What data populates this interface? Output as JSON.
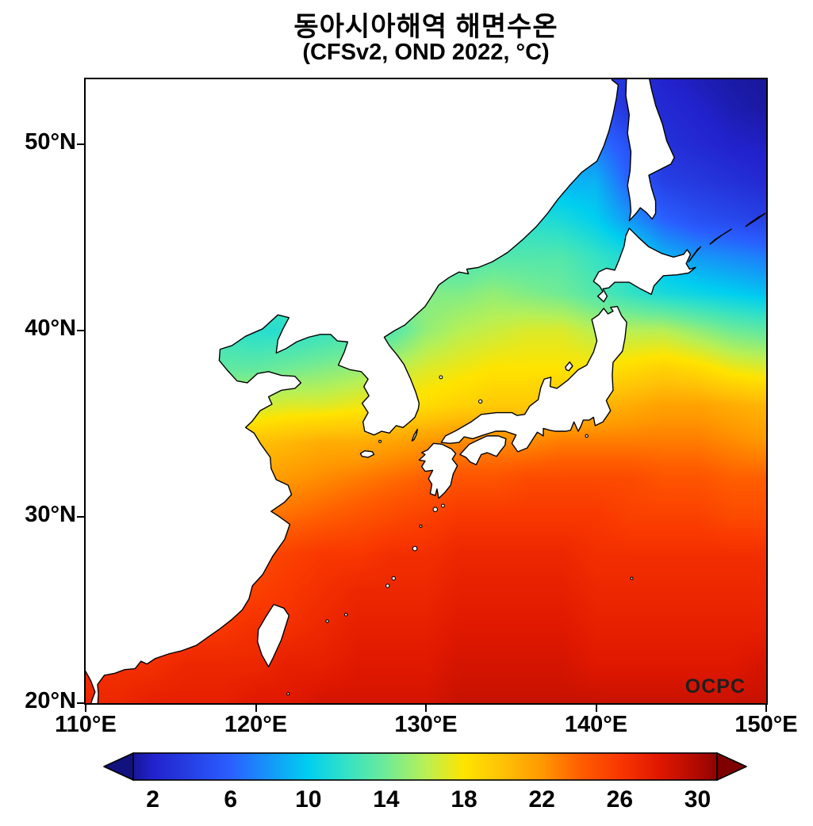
{
  "title": {
    "line1": "동아시아해역 해면수온",
    "line2": "(CFSv2, OND 2022, °C)"
  },
  "watermark": "OCPC",
  "axes": {
    "x_ticks": [
      {
        "v": 110,
        "label": "110°E"
      },
      {
        "v": 120,
        "label": "120°E"
      },
      {
        "v": 130,
        "label": "130°E"
      },
      {
        "v": 140,
        "label": "140°E"
      },
      {
        "v": 150,
        "label": "150°E"
      }
    ],
    "y_ticks": [
      {
        "v": 50,
        "label": "50°N"
      },
      {
        "v": 40,
        "label": "40°N"
      },
      {
        "v": 30,
        "label": "30°N"
      },
      {
        "v": 20,
        "label": "20°N"
      }
    ]
  },
  "colorbar": {
    "range_min": 1,
    "range_max": 31,
    "tick_values": [
      2,
      6,
      10,
      14,
      18,
      22,
      26,
      30
    ],
    "tick_labels": [
      "2",
      "6",
      "10",
      "14",
      "18",
      "22",
      "26",
      "30"
    ]
  },
  "chart_data": {
    "type": "heatmap",
    "title": "동아시아해역 해면수온",
    "subtitle": "(CFSv2, OND 2022, °C)",
    "units": "°C",
    "lon_range": [
      110,
      150
    ],
    "lat_range": [
      20,
      53.5
    ],
    "legend_position": "bottom",
    "grid_lon": [
      110,
      112,
      114,
      116,
      118,
      120,
      122,
      124,
      126,
      128,
      130,
      132,
      134,
      136,
      138,
      140,
      142,
      144,
      146,
      148,
      150
    ],
    "grid_lat": [
      54,
      52,
      50,
      48,
      46,
      44,
      42,
      40,
      38,
      36,
      34,
      32,
      30,
      28,
      26,
      24,
      22,
      20
    ],
    "sst_grid": [
      [
        3,
        3,
        3,
        3,
        3,
        3,
        3,
        3,
        3,
        3,
        3,
        3,
        3.5,
        4,
        4.5,
        4,
        3,
        2,
        1.5,
        1.2,
        1
      ],
      [
        4,
        4,
        4,
        4,
        4,
        4,
        4,
        4,
        4,
        4,
        4,
        4.5,
        5,
        5.5,
        5.5,
        5,
        3,
        2.5,
        2,
        1.5,
        1.2
      ],
      [
        5,
        5,
        5,
        5,
        5,
        5,
        5,
        5,
        5,
        5.5,
        5.5,
        6,
        6.5,
        7,
        7.5,
        7,
        5,
        3,
        2.5,
        2,
        1.8
      ],
      [
        6,
        6,
        6,
        6,
        6,
        6,
        6,
        6,
        6.5,
        7,
        7.5,
        8,
        8.5,
        9,
        9,
        9,
        6,
        4,
        3.5,
        3,
        2.5
      ],
      [
        7,
        7,
        7,
        7,
        7,
        7,
        7.5,
        8,
        8.5,
        9.5,
        10.5,
        11,
        11,
        11.5,
        11,
        10,
        8,
        6,
        5,
        4.5,
        4
      ],
      [
        9,
        9,
        9,
        9,
        9,
        9.5,
        10,
        11,
        12,
        12,
        12.5,
        12.5,
        13,
        13,
        13,
        12,
        11,
        9,
        8,
        7.5,
        7
      ],
      [
        11,
        11,
        11,
        11,
        11,
        12,
        13,
        13.5,
        14,
        14.5,
        14.5,
        14.5,
        15,
        14.5,
        14,
        13,
        12,
        11,
        10.5,
        10,
        9.5
      ],
      [
        12,
        12,
        12,
        12,
        12,
        11.5,
        11.5,
        12,
        12.5,
        13,
        15,
        16,
        16.5,
        17,
        17,
        16,
        16,
        16,
        15,
        14,
        13.5
      ],
      [
        13,
        13,
        13,
        13,
        13.5,
        13.5,
        14,
        14.5,
        15,
        16,
        17,
        17.5,
        18,
        18,
        18,
        18,
        18.5,
        19,
        18.5,
        17.5,
        17
      ],
      [
        16,
        16,
        16,
        16,
        16.5,
        16.5,
        17,
        17,
        17.5,
        18,
        18.5,
        19,
        19.5,
        19.5,
        20,
        20.5,
        21,
        21.5,
        21.5,
        21,
        20.5
      ],
      [
        19,
        19,
        19,
        19,
        19.5,
        20,
        20.5,
        21,
        21,
        21.5,
        22,
        22.5,
        22.5,
        22.5,
        23,
        23,
        23,
        23,
        23,
        22.5,
        22
      ],
      [
        21,
        21,
        21,
        21,
        21,
        21.5,
        22,
        22.5,
        23,
        23.5,
        24,
        24.5,
        24.5,
        25,
        25,
        25,
        25,
        24.5,
        24.5,
        24,
        24
      ],
      [
        22.5,
        22.5,
        22.5,
        22.5,
        23,
        23,
        23.5,
        24,
        24.5,
        25,
        25.5,
        26,
        26,
        26,
        26,
        26,
        25.5,
        25.5,
        25.5,
        25,
        25
      ],
      [
        24.5,
        24.5,
        24.5,
        24.5,
        24.5,
        25,
        25.5,
        26,
        26,
        26.5,
        26.5,
        27,
        27,
        27,
        27,
        26.5,
        26.5,
        26.5,
        26.5,
        26.5,
        26.5
      ],
      [
        25.5,
        25.5,
        25.5,
        25.5,
        25.5,
        25.5,
        26,
        26.5,
        27,
        27,
        27,
        27.5,
        27.5,
        27.5,
        27.5,
        27,
        27,
        27,
        27,
        27,
        27
      ],
      [
        26,
        26,
        26,
        26,
        26,
        26.5,
        26.5,
        27,
        27.5,
        27.5,
        27.5,
        28,
        28,
        28,
        28,
        27.5,
        27.5,
        27.5,
        27.5,
        27.5,
        27.5
      ],
      [
        26.5,
        26.5,
        26.5,
        27,
        27,
        27,
        27.5,
        27.5,
        28,
        28,
        28,
        28.5,
        28.5,
        28.5,
        28.5,
        28,
        28,
        28,
        28,
        28,
        28.5
      ],
      [
        27,
        27,
        27.5,
        27.5,
        27.5,
        28,
        28,
        28.5,
        28.5,
        28.5,
        28.5,
        29,
        29,
        29,
        29,
        29,
        29,
        29,
        29,
        29,
        29
      ]
    ],
    "colormap_anchors": [
      {
        "v": 0.5,
        "c": "#12127e"
      },
      {
        "v": 2,
        "c": "#2222cc"
      },
      {
        "v": 6,
        "c": "#2a5fff"
      },
      {
        "v": 10,
        "c": "#00cff0"
      },
      {
        "v": 12,
        "c": "#35e2c4"
      },
      {
        "v": 14,
        "c": "#6feb97"
      },
      {
        "v": 16,
        "c": "#b8f055"
      },
      {
        "v": 18,
        "c": "#ffe400"
      },
      {
        "v": 20,
        "c": "#ffc107"
      },
      {
        "v": 22,
        "c": "#ff9800"
      },
      {
        "v": 24,
        "c": "#ff5d00"
      },
      {
        "v": 26,
        "c": "#f93700"
      },
      {
        "v": 28,
        "c": "#e01800"
      },
      {
        "v": 30,
        "c": "#b00a00"
      },
      {
        "v": 31.5,
        "c": "#7e0000"
      }
    ],
    "colorbar_ticks": [
      2,
      6,
      10,
      14,
      18,
      22,
      26,
      30
    ]
  }
}
